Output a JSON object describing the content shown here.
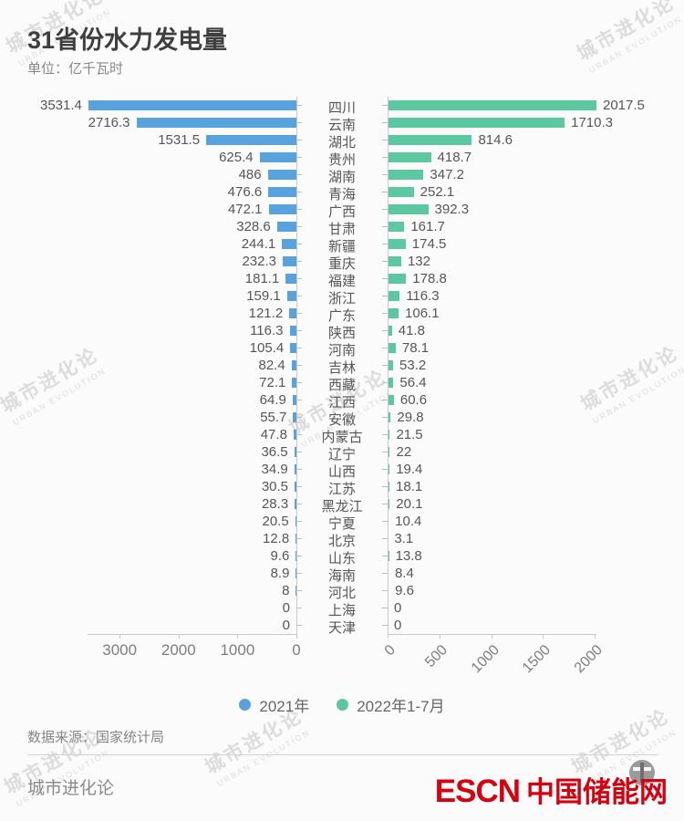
{
  "page": {
    "title": "31省份水力发电量",
    "subtitle": "单位：亿千瓦时",
    "source": "数据来源：国家统计局",
    "footer_brand": "城市进化论",
    "watermark": {
      "line1": "城市进化论",
      "line2": "URBAN EVOLUTION"
    },
    "logo": {
      "escn": "ESCN",
      "cn": "中国储能网"
    }
  },
  "legend": [
    {
      "label": "2021年",
      "color": "#58a2de"
    },
    {
      "label": "2022年1-7月",
      "color": "#5cc8a2"
    }
  ],
  "chart_data": {
    "type": "bar",
    "orientation": "horizontal-mirrored",
    "title": "31省份水力发电量",
    "unit": "亿千瓦时",
    "categories": [
      "四川",
      "云南",
      "湖北",
      "贵州",
      "湖南",
      "青海",
      "广西",
      "甘肃",
      "新疆",
      "重庆",
      "福建",
      "浙江",
      "广东",
      "陕西",
      "河南",
      "吉林",
      "西藏",
      "江西",
      "安徽",
      "内蒙古",
      "辽宁",
      "山西",
      "江苏",
      "黑龙江",
      "宁夏",
      "北京",
      "山东",
      "海南",
      "河北",
      "上海",
      "天津"
    ],
    "series": [
      {
        "name": "2021年",
        "side": "left",
        "color": "#58a2de",
        "values": [
          3531.4,
          2716.3,
          1531.5,
          625.4,
          486,
          476.6,
          472.1,
          328.6,
          244.1,
          232.3,
          181.1,
          159.1,
          121.2,
          116.3,
          105.4,
          82.4,
          72.1,
          64.9,
          55.7,
          47.8,
          36.5,
          34.9,
          30.5,
          28.3,
          20.5,
          12.8,
          9.6,
          8.9,
          8,
          0,
          0
        ]
      },
      {
        "name": "2022年1-7月",
        "side": "right",
        "color": "#5cc8a2",
        "values": [
          2017.5,
          1710.3,
          814.6,
          418.7,
          347.2,
          252.1,
          392.3,
          161.7,
          174.5,
          132,
          178.8,
          116.3,
          106.1,
          41.8,
          78.1,
          53.2,
          56.4,
          60.6,
          29.8,
          21.5,
          22,
          19.4,
          18.1,
          20.1,
          10.4,
          3.1,
          13.8,
          8.4,
          9.6,
          0,
          0
        ]
      }
    ],
    "left_axis_ticks": [
      3000,
      2000,
      1000,
      0
    ],
    "right_axis_ticks": [
      0,
      500,
      1000,
      1500,
      2000
    ],
    "left_xlim": [
      0,
      3531.4
    ],
    "right_xlim": [
      0,
      2017.5
    ],
    "grid": false,
    "legend_position": "bottom-center"
  }
}
